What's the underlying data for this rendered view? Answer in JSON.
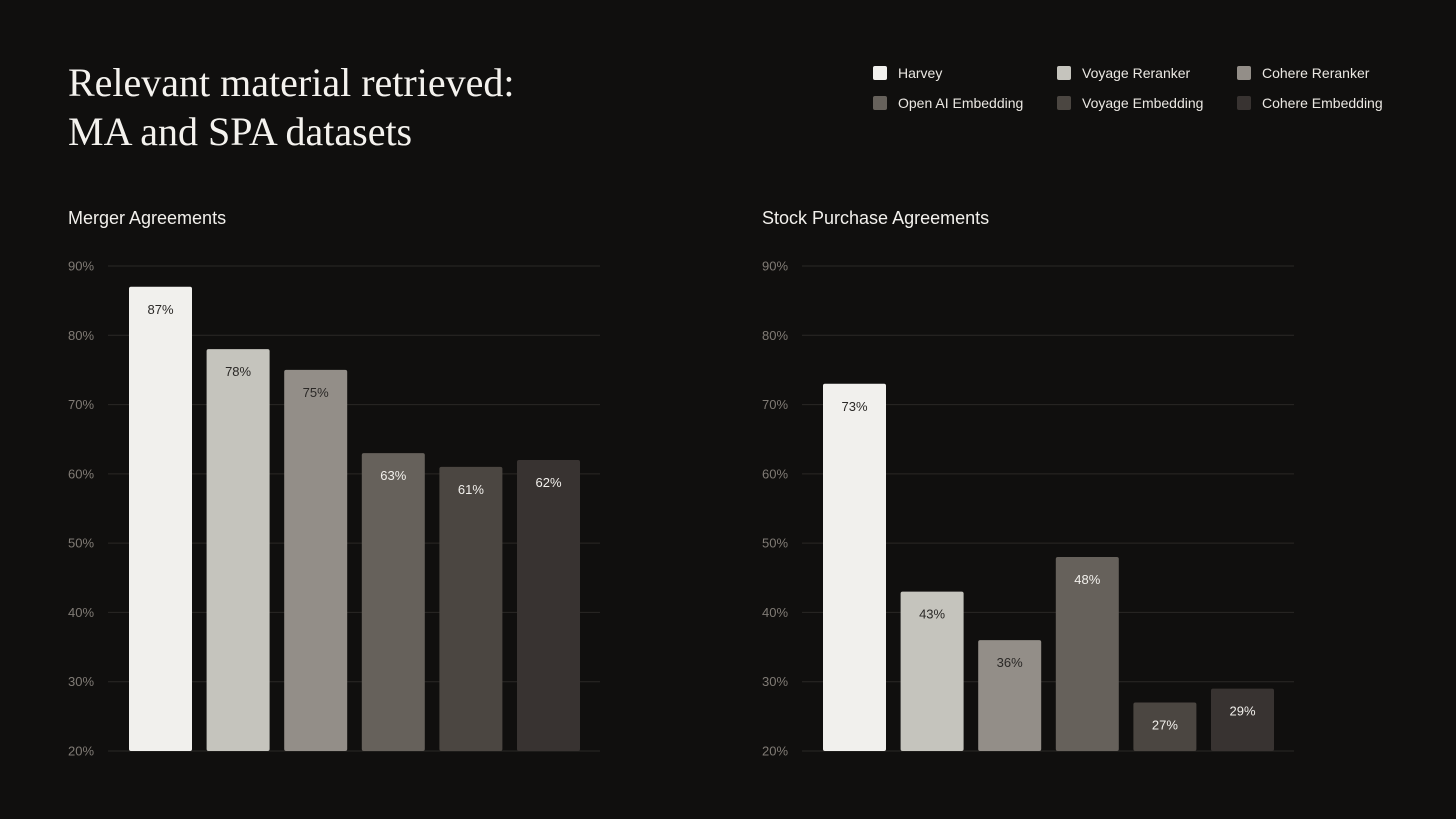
{
  "title": {
    "line1": "Relevant material retrieved:",
    "line2": "MA and SPA datasets"
  },
  "legend": [
    {
      "name": "Harvey",
      "color": "#f1f0ed"
    },
    {
      "name": "Voyage Reranker",
      "color": "#c5c4bd"
    },
    {
      "name": "Cohere Reranker",
      "color": "#938e88"
    },
    {
      "name": "Open AI Embedding",
      "color": "#66615b"
    },
    {
      "name": "Voyage Embedding",
      "color": "#4b4641"
    },
    {
      "name": "Cohere Embedding",
      "color": "#383331"
    }
  ],
  "chart_data": [
    {
      "type": "bar",
      "title": "Merger Agreements",
      "categories": [
        "Harvey",
        "Voyage Reranker",
        "Cohere Reranker",
        "Open AI Embedding",
        "Voyage Embedding",
        "Cohere Embedding"
      ],
      "values": [
        87,
        78,
        75,
        63,
        61,
        62
      ],
      "value_labels": [
        "87%",
        "78%",
        "75%",
        "63%",
        "61%",
        "62%"
      ],
      "colors": [
        "#f1f0ed",
        "#c5c4bd",
        "#938e88",
        "#66615b",
        "#4b4641",
        "#383331"
      ],
      "label_colors": [
        "#2a2826",
        "#2a2826",
        "#2a2826",
        "#f2f0ec",
        "#f2f0ec",
        "#f2f0ec"
      ],
      "ylim": [
        20,
        90
      ],
      "yticks": [
        20,
        30,
        40,
        50,
        60,
        70,
        80,
        90
      ],
      "ytick_labels": [
        "20%",
        "30%",
        "40%",
        "50%",
        "60%",
        "70%",
        "80%",
        "90%"
      ],
      "grid": true,
      "legend": "top-right"
    },
    {
      "type": "bar",
      "title": "Stock Purchase Agreements",
      "categories": [
        "Harvey",
        "Voyage Reranker",
        "Cohere Reranker",
        "Open AI Embedding",
        "Voyage Embedding",
        "Cohere Embedding"
      ],
      "values": [
        73,
        43,
        36,
        48,
        27,
        29
      ],
      "value_labels": [
        "73%",
        "43%",
        "36%",
        "48%",
        "27%",
        "29%"
      ],
      "colors": [
        "#f1f0ed",
        "#c5c4bd",
        "#938e88",
        "#66615b",
        "#4b4641",
        "#383331"
      ],
      "label_colors": [
        "#2a2826",
        "#2a2826",
        "#2a2826",
        "#f2f0ec",
        "#f2f0ec",
        "#f2f0ec"
      ],
      "ylim": [
        20,
        90
      ],
      "yticks": [
        20,
        30,
        40,
        50,
        60,
        70,
        80,
        90
      ],
      "ytick_labels": [
        "20%",
        "30%",
        "40%",
        "50%",
        "60%",
        "70%",
        "80%",
        "90%"
      ],
      "grid": true,
      "legend": "top-right"
    }
  ]
}
